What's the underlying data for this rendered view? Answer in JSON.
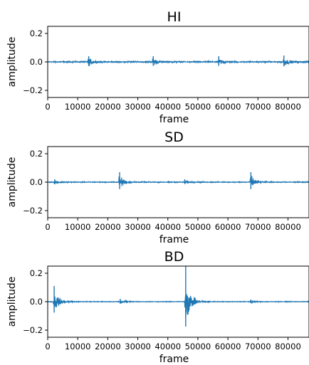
{
  "chart_data": [
    {
      "type": "line",
      "title": "HI",
      "xlabel": "frame",
      "ylabel": "amplitude",
      "xlim": [
        0,
        87000
      ],
      "ylim": [
        -0.25,
        0.25
      ],
      "xticks": [
        0,
        10000,
        20000,
        30000,
        40000,
        50000,
        60000,
        70000,
        80000
      ],
      "xtick_labels": [
        "0",
        "10000",
        "20000",
        "30000",
        "40000",
        "50000",
        "60000",
        "70000",
        "80000"
      ],
      "yticks": [
        0.2,
        0.0,
        -0.2
      ],
      "ytick_labels": [
        "0.2",
        "0.0",
        "−0.2"
      ],
      "series_color": "#1f77b4",
      "baseline_noise": 0.006,
      "onsets": [
        {
          "frame": 13500,
          "amplitude": 0.04
        },
        {
          "frame": 35000,
          "amplitude": 0.04
        },
        {
          "frame": 56800,
          "amplitude": 0.04
        },
        {
          "frame": 78500,
          "amplitude": 0.045
        }
      ]
    },
    {
      "type": "line",
      "title": "SD",
      "xlabel": "frame",
      "ylabel": "amplitude",
      "xlim": [
        0,
        87000
      ],
      "ylim": [
        -0.25,
        0.25
      ],
      "xticks": [
        0,
        10000,
        20000,
        30000,
        40000,
        50000,
        60000,
        70000,
        80000
      ],
      "xtick_labels": [
        "0",
        "10000",
        "20000",
        "30000",
        "40000",
        "50000",
        "60000",
        "70000",
        "80000"
      ],
      "yticks": [
        0.2,
        0.0,
        -0.2
      ],
      "ytick_labels": [
        "0.2",
        "0.0",
        "−0.2"
      ],
      "series_color": "#1f77b4",
      "baseline_noise": 0.004,
      "onsets": [
        {
          "frame": 2200,
          "amplitude": 0.02
        },
        {
          "frame": 23800,
          "amplitude": 0.07
        },
        {
          "frame": 45500,
          "amplitude": 0.02
        },
        {
          "frame": 67500,
          "amplitude": 0.07
        }
      ]
    },
    {
      "type": "line",
      "title": "BD",
      "xlabel": "frame",
      "ylabel": "amplitude",
      "xlim": [
        0,
        87000
      ],
      "ylim": [
        -0.25,
        0.25
      ],
      "xticks": [
        0,
        10000,
        20000,
        30000,
        40000,
        50000,
        60000,
        70000,
        80000
      ],
      "xtick_labels": [
        "0",
        "10000",
        "20000",
        "30000",
        "40000",
        "50000",
        "60000",
        "70000",
        "80000"
      ],
      "yticks": [
        0.2,
        0.0,
        -0.2
      ],
      "ytick_labels": [
        "0.2",
        "0.0",
        "−0.2"
      ],
      "series_color": "#1f77b4",
      "baseline_noise": 0.003,
      "onsets": [
        {
          "frame": 2000,
          "amplitude": 0.11
        },
        {
          "frame": 24000,
          "amplitude": 0.02
        },
        {
          "frame": 45800,
          "amplitude": 0.25
        },
        {
          "frame": 67500,
          "amplitude": 0.015
        }
      ]
    }
  ]
}
